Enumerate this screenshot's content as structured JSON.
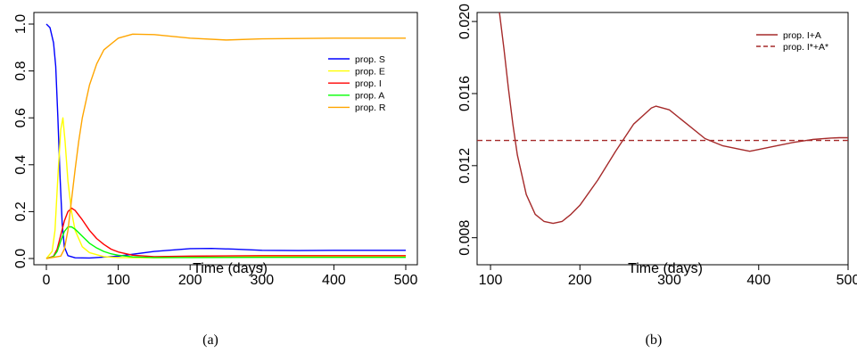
{
  "chart_data": [
    {
      "type": "line",
      "caption": "(a)",
      "xlabel": "Time (days)",
      "ylabel": "",
      "xlim": [
        0,
        500
      ],
      "ylim": [
        0,
        1.0
      ],
      "xticks": [
        "0",
        "100",
        "200",
        "300",
        "400",
        "500"
      ],
      "yticks": [
        "0.0",
        "0.2",
        "0.4",
        "0.6",
        "0.8",
        "1.0"
      ],
      "grid": false,
      "legend": "top-right",
      "series": [
        {
          "name": "prop. S",
          "color": "#0000ff",
          "dash": "solid",
          "x": [
            0,
            5,
            10,
            13,
            16,
            19,
            22,
            25,
            30,
            40,
            60,
            100,
            150,
            200,
            230,
            260,
            300,
            350,
            400,
            450,
            500
          ],
          "y": [
            1.0,
            0.985,
            0.92,
            0.82,
            0.6,
            0.35,
            0.15,
            0.05,
            0.012,
            0.003,
            0.002,
            0.01,
            0.03,
            0.042,
            0.043,
            0.04,
            0.035,
            0.034,
            0.035,
            0.035,
            0.035
          ]
        },
        {
          "name": "prop. E",
          "color": "#ffff00",
          "dash": "solid",
          "x": [
            0,
            8,
            12,
            16,
            20,
            23,
            26,
            30,
            35,
            40,
            50,
            60,
            80,
            100,
            150,
            200,
            300,
            400,
            500
          ],
          "y": [
            0.0,
            0.03,
            0.12,
            0.35,
            0.55,
            0.6,
            0.5,
            0.33,
            0.2,
            0.12,
            0.05,
            0.025,
            0.008,
            0.004,
            0.003,
            0.005,
            0.007,
            0.008,
            0.008
          ]
        },
        {
          "name": "prop. I",
          "color": "#ff0000",
          "dash": "solid",
          "x": [
            0,
            10,
            15,
            20,
            25,
            30,
            35,
            40,
            50,
            60,
            70,
            80,
            90,
            100,
            120,
            150,
            200,
            300,
            400,
            500
          ],
          "y": [
            0.0,
            0.01,
            0.04,
            0.1,
            0.16,
            0.2,
            0.215,
            0.205,
            0.165,
            0.12,
            0.085,
            0.06,
            0.04,
            0.028,
            0.014,
            0.008,
            0.01,
            0.012,
            0.012,
            0.012
          ]
        },
        {
          "name": "prop. A",
          "color": "#00ff00",
          "dash": "solid",
          "x": [
            0,
            10,
            15,
            20,
            25,
            30,
            35,
            40,
            50,
            60,
            70,
            80,
            90,
            100,
            120,
            150,
            200,
            300,
            400,
            500
          ],
          "y": [
            0.0,
            0.008,
            0.03,
            0.075,
            0.115,
            0.135,
            0.135,
            0.125,
            0.095,
            0.065,
            0.045,
            0.03,
            0.02,
            0.014,
            0.007,
            0.004,
            0.004,
            0.005,
            0.005,
            0.005
          ]
        },
        {
          "name": "prop. R",
          "color": "#ffa500",
          "dash": "solid",
          "x": [
            0,
            20,
            25,
            30,
            35,
            40,
            45,
            50,
            60,
            70,
            80,
            100,
            120,
            150,
            200,
            250,
            300,
            400,
            500
          ],
          "y": [
            0.0,
            0.01,
            0.04,
            0.12,
            0.25,
            0.38,
            0.5,
            0.6,
            0.74,
            0.83,
            0.89,
            0.94,
            0.957,
            0.955,
            0.94,
            0.932,
            0.937,
            0.94,
            0.94
          ]
        }
      ]
    },
    {
      "type": "line",
      "caption": "(b)",
      "xlabel": "Time (days)",
      "ylabel": "",
      "xlim": [
        85,
        500
      ],
      "ylim": [
        0.0065,
        0.0205
      ],
      "xticks": [
        "100",
        "200",
        "300",
        "400",
        "500"
      ],
      "yticks": [
        "0.008",
        "0.012",
        "0.016",
        "0.020"
      ],
      "grid": false,
      "legend": "top-right",
      "series": [
        {
          "name": "prop. I+A",
          "color": "#a52a2a",
          "dash": "solid",
          "x": [
            110,
            115,
            120,
            125,
            130,
            140,
            150,
            160,
            170,
            180,
            190,
            200,
            220,
            240,
            260,
            280,
            285,
            300,
            320,
            340,
            360,
            380,
            390,
            400,
            420,
            440,
            460,
            480,
            490,
            500
          ],
          "y": [
            0.0205,
            0.0185,
            0.0163,
            0.0143,
            0.0126,
            0.0104,
            0.0093,
            0.0089,
            0.0088,
            0.0089,
            0.0093,
            0.0098,
            0.0112,
            0.0128,
            0.0143,
            0.0152,
            0.0153,
            0.0151,
            0.0143,
            0.0135,
            0.0131,
            0.0129,
            0.0128,
            0.0129,
            0.0131,
            0.0133,
            0.01345,
            0.01353,
            0.01355,
            0.01355
          ]
        },
        {
          "name": "prop. I*+A*",
          "color": "#a52a2a",
          "dash": "dashed",
          "x": [
            85,
            500
          ],
          "y": [
            0.0134,
            0.0134
          ]
        }
      ]
    }
  ]
}
